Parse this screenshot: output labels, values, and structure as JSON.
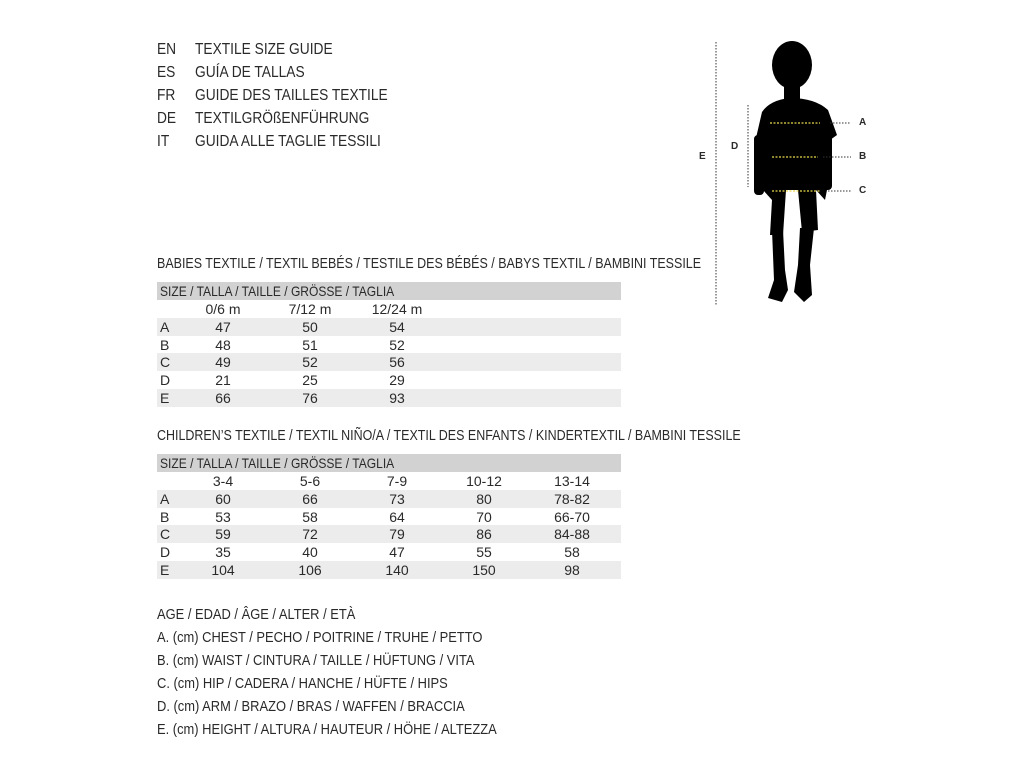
{
  "title_lines": [
    {
      "code": "EN",
      "text": "TEXTILE SIZE GUIDE"
    },
    {
      "code": "ES",
      "text": "GUÍA DE TALLAS"
    },
    {
      "code": "FR",
      "text": "GUIDE DES TAILLES TEXTILE"
    },
    {
      "code": "DE",
      "text": "TEXTILGRÖßENFÜHRUNG"
    },
    {
      "code": "IT",
      "text": "GUIDA ALLE TAGLIE TESSILI"
    }
  ],
  "figure": {
    "labels": {
      "a": "A",
      "b": "B",
      "c": "C",
      "d": "D",
      "e": "E"
    },
    "measure_line_color": "#e8d84a"
  },
  "babies": {
    "heading": "BABIES TEXTILE / TEXTIL BEBÉS / TESTILE DES BÉBÉS / BABYS TEXTIL / BAMBINI TESSILE",
    "size_label": "SIZE / TALLA / TAILLE / GRÖSSE / TAGLIA",
    "columns": [
      "0/6 m",
      "7/12 m",
      "12/24 m"
    ],
    "rows": [
      {
        "label": "A",
        "values": [
          "47",
          "50",
          "54"
        ]
      },
      {
        "label": "B",
        "values": [
          "48",
          "51",
          "52"
        ]
      },
      {
        "label": "C",
        "values": [
          "49",
          "52",
          "56"
        ]
      },
      {
        "label": "D",
        "values": [
          "21",
          "25",
          "29"
        ]
      },
      {
        "label": "E",
        "values": [
          "66",
          "76",
          "93"
        ]
      }
    ]
  },
  "children": {
    "heading": "CHILDREN’S TEXTILE / TEXTIL NIÑO/A / TEXTIL DES ENFANTS / KINDERTEXTIL / BAMBINI TESSILE",
    "size_label": "SIZE / TALLA / TAILLE / GRÖSSE / TAGLIA",
    "columns": [
      "3-4",
      "5-6",
      "7-9",
      "10-12",
      "13-14"
    ],
    "rows": [
      {
        "label": "A",
        "values": [
          "60",
          "66",
          "73",
          "80",
          "78-82"
        ]
      },
      {
        "label": "B",
        "values": [
          "53",
          "58",
          "64",
          "70",
          "66-70"
        ]
      },
      {
        "label": "C",
        "values": [
          "59",
          "72",
          "79",
          "86",
          "84-88"
        ]
      },
      {
        "label": "D",
        "values": [
          "35",
          "40",
          "47",
          "55",
          "58"
        ]
      },
      {
        "label": "E",
        "values": [
          "104",
          "106",
          "140",
          "150",
          "98"
        ]
      }
    ]
  },
  "legend": [
    "AGE / EDAD / ÂGE / ALTER / ETÀ",
    "A. (cm) CHEST / PECHO / POITRINE / TRUHE / PETTO",
    "B. (cm) WAIST / CINTURA / TAILLE / HÜFTUNG / VITA",
    "C. (cm) HIP / CADERA / HANCHE / HÜFTE / HIPS",
    "D. (cm) ARM / BRAZO / BRAS / WAFFEN / BRACCIA",
    "E. (cm) HEIGHT / ALTURA / HAUTEUR / HÖHE / ALTEZZA"
  ]
}
